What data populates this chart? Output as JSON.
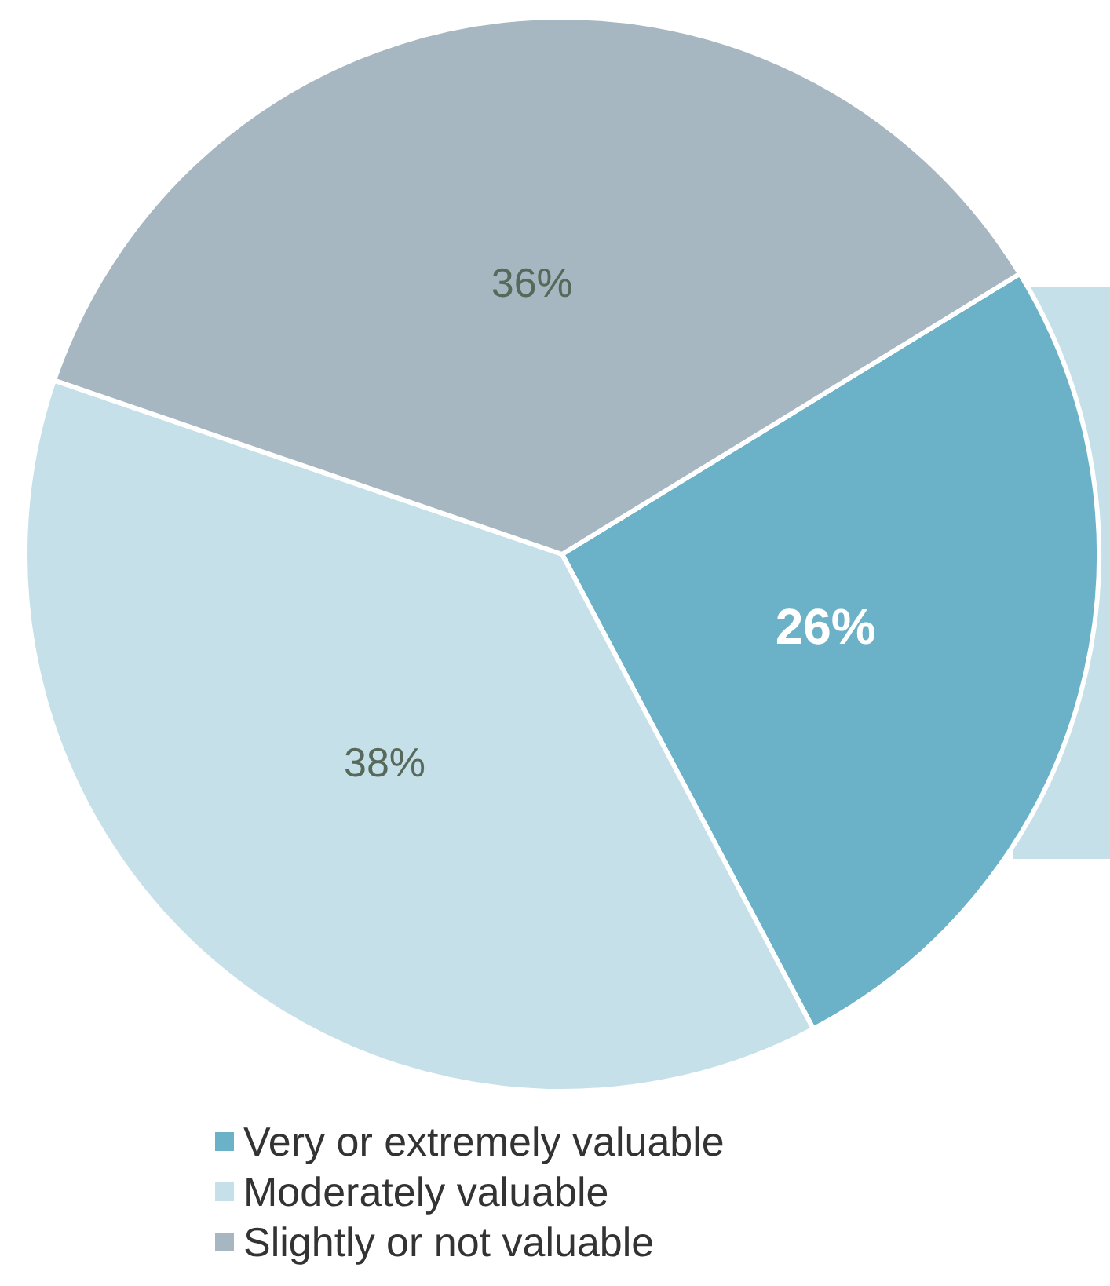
{
  "chart_data": {
    "type": "pie",
    "categories": [
      "Very or extremely valuable",
      "Moderately valuable",
      "Slightly or not valuable"
    ],
    "values": [
      26,
      38,
      36
    ],
    "value_labels": [
      "26%",
      "38%",
      "36%"
    ],
    "colors": [
      "#6bb2c8",
      "#c5e0e8",
      "#a7b7c1"
    ],
    "legend": "bottom"
  }
}
